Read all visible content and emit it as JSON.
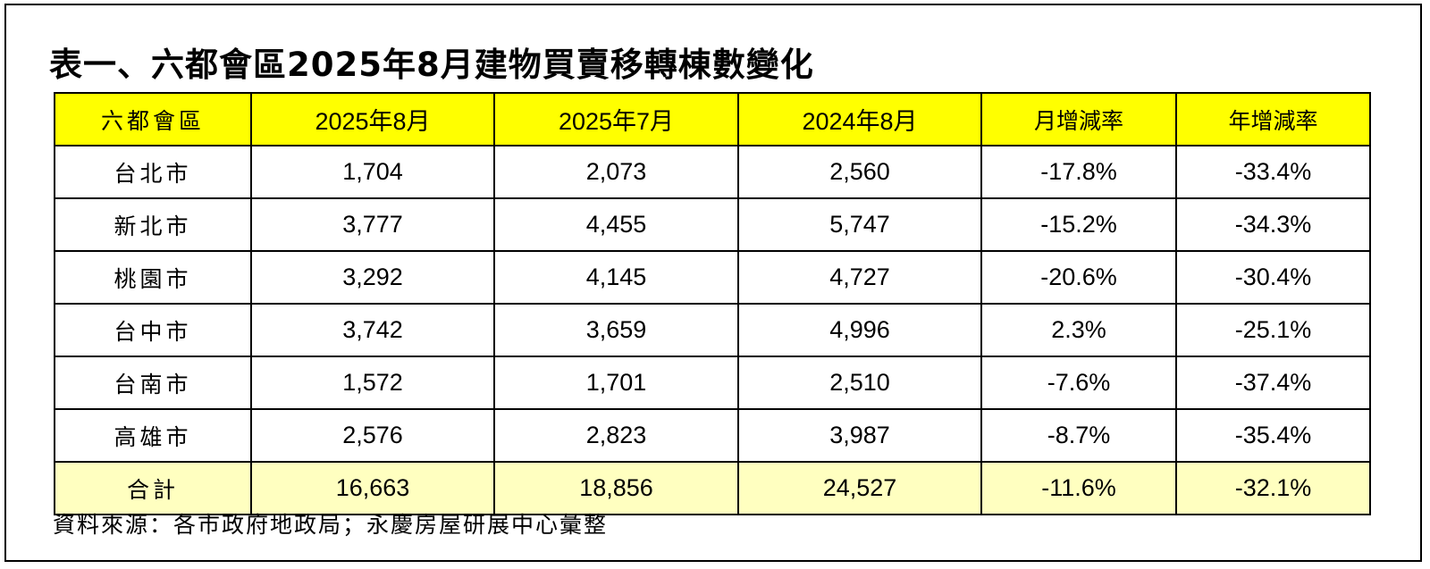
{
  "title": "表一、六都會區2025年8月建物買賣移轉棟數變化",
  "headers": [
    "六都會區",
    "2025年8月",
    "2025年7月",
    "2024年8月",
    "月增減率",
    "年增減率"
  ],
  "rows": [
    [
      "台北市",
      "1,704",
      "2,073",
      "2,560",
      "-17.8%",
      "-33.4%"
    ],
    [
      "新北市",
      "3,777",
      "4,455",
      "5,747",
      "-15.2%",
      "-34.3%"
    ],
    [
      "桃園市",
      "3,292",
      "4,145",
      "4,727",
      "-20.6%",
      "-30.4%"
    ],
    [
      "台中市",
      "3,742",
      "3,659",
      "4,996",
      "2.3%",
      "-25.1%"
    ],
    [
      "台南市",
      "1,572",
      "1,701",
      "2,510",
      "-7.6%",
      "-37.4%"
    ],
    [
      "高雄市",
      "2,576",
      "2,823",
      "3,987",
      "-8.7%",
      "-35.4%"
    ]
  ],
  "total": [
    "合計",
    "16,663",
    "18,856",
    "24,527",
    "-11.6%",
    "-32.1%"
  ],
  "source": "資料來源：各市政府地政局；永慶房屋研展中心彙整",
  "colors": {
    "header_bg": "#ffff00",
    "total_bg": "#ffffc0",
    "border": "#000000"
  }
}
